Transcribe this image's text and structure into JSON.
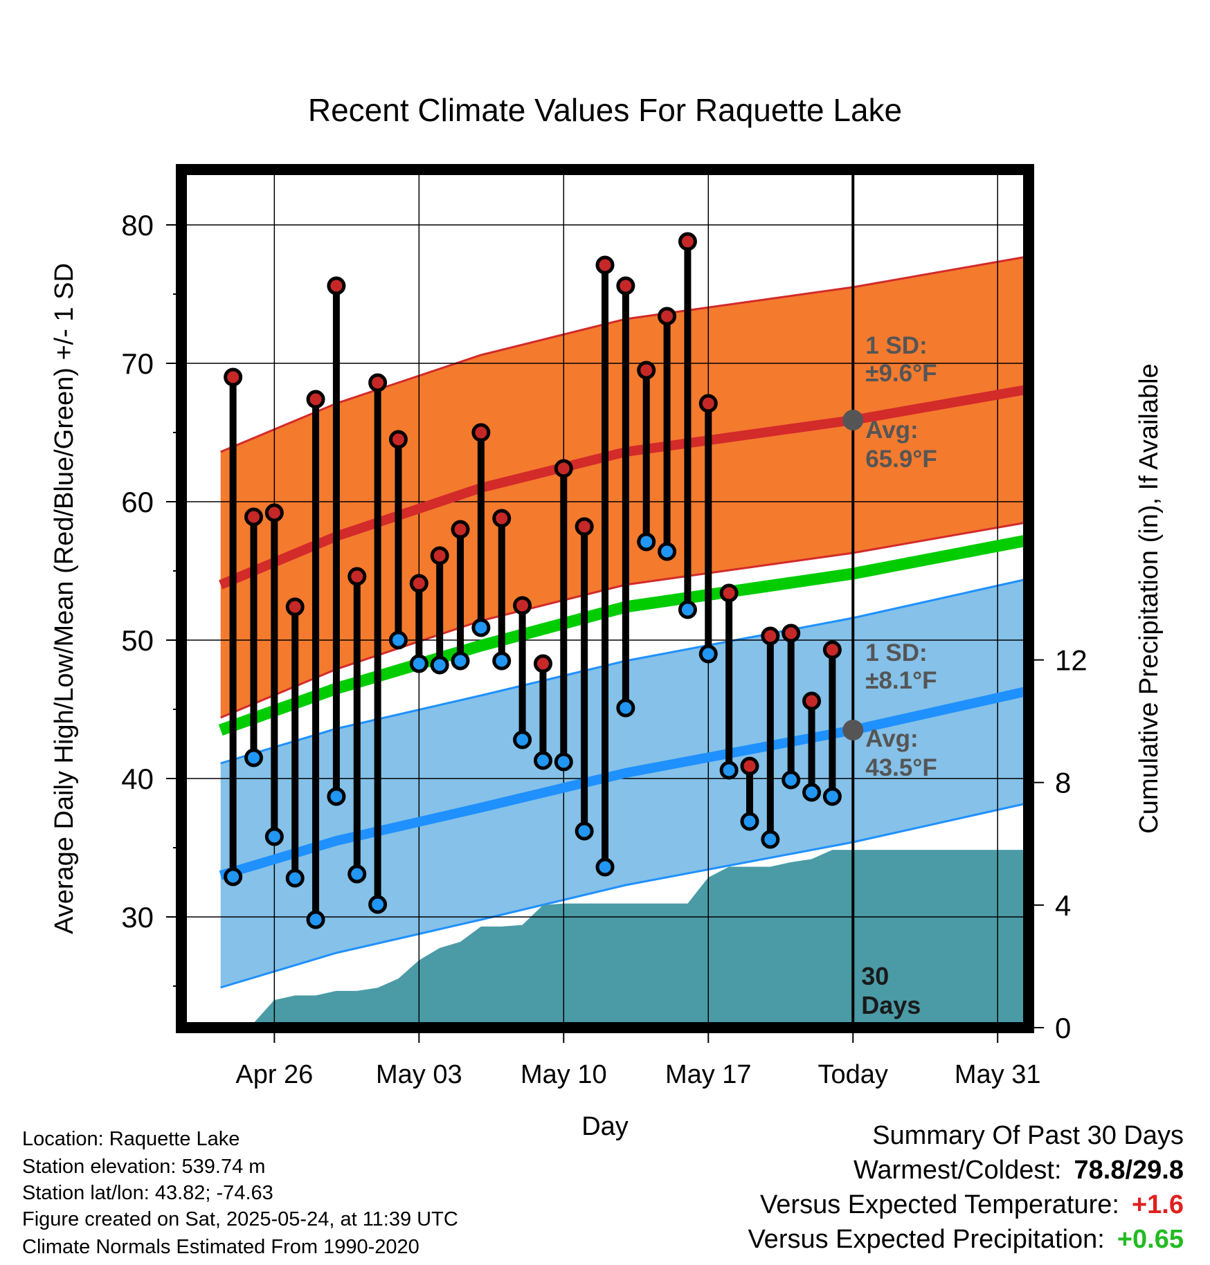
{
  "chart_data": {
    "type": "line",
    "title": "Recent Climate Values For Raquette Lake",
    "xlabel": "Day",
    "ylabel": "Average Daily High/Low/Mean (Red/Blue/Green) +/- 1 SD",
    "y2label": "Cumulative Precipitation (in), If Available",
    "xlim": [
      -4.5,
      36.5
    ],
    "ylim": [
      22,
      84
    ],
    "y2lim": [
      0,
      28
    ],
    "x_unit": "days since Apr 26",
    "x_ticks": [
      {
        "x": 0,
        "label": "Apr 26"
      },
      {
        "x": 7,
        "label": "May 03"
      },
      {
        "x": 14,
        "label": "May 10"
      },
      {
        "x": 21,
        "label": "May 17"
      },
      {
        "x": 28,
        "label": "Today"
      },
      {
        "x": 35,
        "label": "May 31"
      }
    ],
    "y_ticks": [
      30,
      40,
      50,
      60,
      70,
      80
    ],
    "y2_ticks": [
      0,
      4,
      8,
      12
    ],
    "today_x": 28,
    "today_label": "30 Days",
    "highs": [
      {
        "x": -2,
        "y": 69.0
      },
      {
        "x": -1,
        "y": 58.9
      },
      {
        "x": 0,
        "y": 59.2
      },
      {
        "x": 1,
        "y": 52.4
      },
      {
        "x": 2,
        "y": 67.4
      },
      {
        "x": 3,
        "y": 75.6
      },
      {
        "x": 4,
        "y": 54.6
      },
      {
        "x": 5,
        "y": 68.6
      },
      {
        "x": 6,
        "y": 64.5
      },
      {
        "x": 7,
        "y": 54.1
      },
      {
        "x": 8,
        "y": 56.1
      },
      {
        "x": 9,
        "y": 58.0
      },
      {
        "x": 10,
        "y": 65.0
      },
      {
        "x": 11,
        "y": 58.8
      },
      {
        "x": 12,
        "y": 52.5
      },
      {
        "x": 13,
        "y": 48.3
      },
      {
        "x": 14,
        "y": 62.4
      },
      {
        "x": 15,
        "y": 58.2
      },
      {
        "x": 16,
        "y": 77.1
      },
      {
        "x": 17,
        "y": 75.6
      },
      {
        "x": 18,
        "y": 69.5
      },
      {
        "x": 19,
        "y": 73.4
      },
      {
        "x": 20,
        "y": 78.8
      },
      {
        "x": 21,
        "y": 67.1
      },
      {
        "x": 22,
        "y": 53.4
      },
      {
        "x": 23,
        "y": 40.9
      },
      {
        "x": 24,
        "y": 50.3
      },
      {
        "x": 25,
        "y": 50.5
      },
      {
        "x": 26,
        "y": 45.6
      },
      {
        "x": 27,
        "y": 49.3
      }
    ],
    "lows": [
      {
        "x": -2,
        "y": 32.9
      },
      {
        "x": -1,
        "y": 41.5
      },
      {
        "x": 0,
        "y": 35.8
      },
      {
        "x": 1,
        "y": 32.8
      },
      {
        "x": 2,
        "y": 29.8
      },
      {
        "x": 3,
        "y": 38.7
      },
      {
        "x": 4,
        "y": 33.1
      },
      {
        "x": 5,
        "y": 30.9
      },
      {
        "x": 6,
        "y": 50.0
      },
      {
        "x": 7,
        "y": 48.3
      },
      {
        "x": 8,
        "y": 48.2
      },
      {
        "x": 9,
        "y": 48.5
      },
      {
        "x": 10,
        "y": 50.9
      },
      {
        "x": 11,
        "y": 48.5
      },
      {
        "x": 12,
        "y": 42.8
      },
      {
        "x": 13,
        "y": 41.3
      },
      {
        "x": 14,
        "y": 41.2
      },
      {
        "x": 15,
        "y": 36.2
      },
      {
        "x": 16,
        "y": 33.6
      },
      {
        "x": 17,
        "y": 45.1
      },
      {
        "x": 18,
        "y": 57.1
      },
      {
        "x": 19,
        "y": 56.4
      },
      {
        "x": 20,
        "y": 52.2
      },
      {
        "x": 21,
        "y": 49.0
      },
      {
        "x": 22,
        "y": 40.6
      },
      {
        "x": 23,
        "y": 36.9
      },
      {
        "x": 24,
        "y": 35.6
      },
      {
        "x": 25,
        "y": 39.9
      },
      {
        "x": 26,
        "y": 39.0
      },
      {
        "x": 27,
        "y": 38.7
      }
    ],
    "normal_high": [
      {
        "x": -2.6,
        "y": 54.0
      },
      {
        "x": 3,
        "y": 57.5
      },
      {
        "x": 10,
        "y": 61.0
      },
      {
        "x": 17,
        "y": 63.6
      },
      {
        "x": 28,
        "y": 65.9
      },
      {
        "x": 36.4,
        "y": 68.1
      }
    ],
    "normal_high_sd": 9.6,
    "normal_low": [
      {
        "x": -2.6,
        "y": 33.0
      },
      {
        "x": 3,
        "y": 35.5
      },
      {
        "x": 10,
        "y": 37.9
      },
      {
        "x": 17,
        "y": 40.4
      },
      {
        "x": 28,
        "y": 43.5
      },
      {
        "x": 36.4,
        "y": 46.3
      }
    ],
    "normal_low_sd": 8.1,
    "normal_mean": [
      {
        "x": -2.6,
        "y": 43.5
      },
      {
        "x": 3,
        "y": 46.5
      },
      {
        "x": 10,
        "y": 49.6
      },
      {
        "x": 17,
        "y": 52.4
      },
      {
        "x": 28,
        "y": 54.8
      },
      {
        "x": 36.4,
        "y": 57.2
      }
    ],
    "precip": [
      {
        "x": -1.2,
        "y": 0.0
      },
      {
        "x": 0,
        "y": 0.9
      },
      {
        "x": 1,
        "y": 1.05
      },
      {
        "x": 2,
        "y": 1.05
      },
      {
        "x": 3,
        "y": 1.2
      },
      {
        "x": 4,
        "y": 1.2
      },
      {
        "x": 5,
        "y": 1.3
      },
      {
        "x": 6,
        "y": 1.6
      },
      {
        "x": 7,
        "y": 2.2
      },
      {
        "x": 8,
        "y": 2.6
      },
      {
        "x": 9,
        "y": 2.8
      },
      {
        "x": 10,
        "y": 3.3
      },
      {
        "x": 11,
        "y": 3.3
      },
      {
        "x": 12,
        "y": 3.35
      },
      {
        "x": 13,
        "y": 4.0
      },
      {
        "x": 14,
        "y": 4.05
      },
      {
        "x": 15,
        "y": 4.05
      },
      {
        "x": 16,
        "y": 4.05
      },
      {
        "x": 17,
        "y": 4.05
      },
      {
        "x": 18,
        "y": 4.05
      },
      {
        "x": 19,
        "y": 4.05
      },
      {
        "x": 20,
        "y": 4.05
      },
      {
        "x": 21,
        "y": 4.9
      },
      {
        "x": 22,
        "y": 5.25
      },
      {
        "x": 23,
        "y": 5.25
      },
      {
        "x": 24,
        "y": 5.25
      },
      {
        "x": 25,
        "y": 5.4
      },
      {
        "x": 26,
        "y": 5.5
      },
      {
        "x": 27,
        "y": 5.8
      },
      {
        "x": 28,
        "y": 5.8
      },
      {
        "x": 36.4,
        "y": 5.8
      }
    ],
    "high_annotation": {
      "sd_label": "1 SD:",
      "sd_value": "±9.6°F",
      "avg_label": "Avg:",
      "avg_value": "65.9°F"
    },
    "low_annotation": {
      "sd_label": "1 SD:",
      "sd_value": "±8.1°F",
      "avg_label": "Avg:",
      "avg_value": "43.5°F"
    },
    "colors": {
      "high_band": "#f47a2e",
      "high_line": "#d32a2a",
      "low_band": "#85c1e8",
      "low_line": "#1e90ff",
      "mean_line": "#00cc00",
      "precip": "#4a9ba6",
      "high_dot": "#c62828",
      "low_dot": "#2196f3"
    }
  },
  "info": {
    "location": "Location: Raquette Lake",
    "elevation": "Station elevation: 539.74 m",
    "latlon": "Station lat/lon: 43.82; -74.63",
    "created": "Figure created on Sat, 2025-05-24, at 11:39 UTC",
    "normals": "Climate Normals Estimated From 1990-2020"
  },
  "summary": {
    "title": "Summary Of Past 30 Days",
    "warmest_label": "Warmest/Coldest:",
    "warmest_value": "78.8/29.8",
    "temp_label": "Versus Expected Temperature:",
    "temp_value": "+1.6",
    "temp_color": "#e02020",
    "precip_label": "Versus Expected Precipitation:",
    "precip_value": "+0.65",
    "precip_color": "#22bb22"
  }
}
